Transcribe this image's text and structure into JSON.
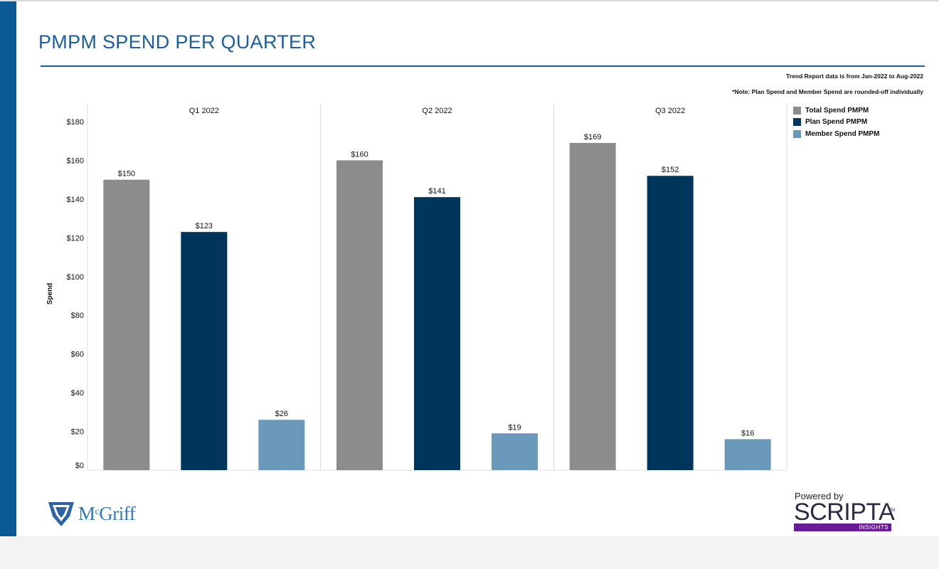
{
  "page": {
    "title": "PMPM SPEND PER QUARTER",
    "note_period": "Trend Report data is from Jan-2022 to Aug-2022",
    "note_rounding": "*Note: Plan Spend and Member Spend are rounded-off individually"
  },
  "chart_data": {
    "type": "bar",
    "ylabel": "Spend",
    "ylim": [
      0,
      180
    ],
    "yticks": [
      0,
      20,
      40,
      60,
      80,
      100,
      120,
      140,
      160,
      180
    ],
    "ytick_labels": [
      "$0",
      "$20",
      "$40",
      "$60",
      "$80",
      "$100",
      "$120",
      "$140",
      "$160",
      "$180"
    ],
    "categories": [
      "Q1 2022",
      "Q2 2022",
      "Q3 2022"
    ],
    "series": [
      {
        "name": "Total Spend PMPM",
        "color": "#8c8c8c",
        "values": [
          150,
          160,
          169
        ],
        "labels": [
          "$150",
          "$160",
          "$169"
        ]
      },
      {
        "name": "Plan Spend PMPM",
        "color": "#00355b",
        "values": [
          123,
          141,
          152
        ],
        "labels": [
          "$123",
          "$141",
          "$152"
        ]
      },
      {
        "name": "Member Spend PMPM",
        "color": "#6a99bb",
        "values": [
          26,
          19,
          16
        ],
        "labels": [
          "$26",
          "$19",
          "$16"
        ]
      }
    ],
    "grid": false,
    "legend_position": "right"
  },
  "logos": {
    "mcgriff": {
      "text": "Griff",
      "prefix": "M",
      "superscript": "c"
    },
    "scripta": {
      "powered": "Powered by",
      "name": "SCRIPTA",
      "tm": "TM",
      "tag": "INSIGHTS",
      "tag_color": "#6a1c98"
    }
  }
}
